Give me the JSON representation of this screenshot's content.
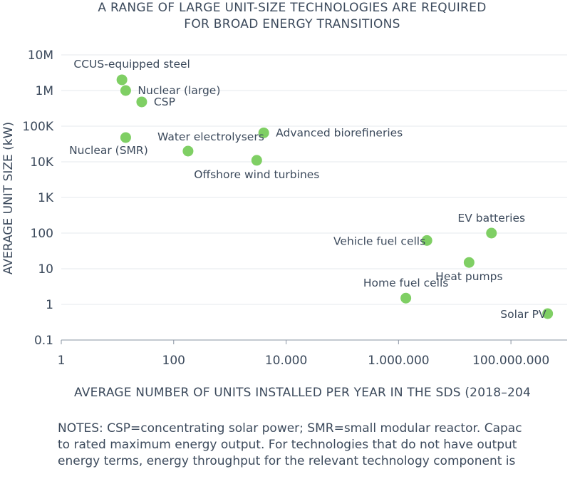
{
  "chart_data": {
    "type": "scatter",
    "title_lines": [
      "A RANGE OF LARGE UNIT-SIZE TECHNOLOGIES ARE REQUIRED",
      "FOR BROAD ENERGY TRANSITIONS"
    ],
    "xlabel": "AVERAGE NUMBER OF UNITS INSTALLED PER YEAR IN THE SDS (2018–204",
    "ylabel": "AVERAGE UNIT SIZE (kW)",
    "x_scale": "log",
    "y_scale": "log",
    "xlim": [
      1,
      1000000000
    ],
    "ylim": [
      0.1,
      10000000
    ],
    "x_ticks": [
      {
        "value": 1,
        "label": "1"
      },
      {
        "value": 100,
        "label": "100"
      },
      {
        "value": 10000,
        "label": "10.000"
      },
      {
        "value": 1000000,
        "label": "1.000.000"
      },
      {
        "value": 100000000,
        "label": "100.000.000"
      }
    ],
    "y_ticks": [
      {
        "value": 10000000,
        "label": "10M"
      },
      {
        "value": 1000000,
        "label": "1M"
      },
      {
        "value": 100000,
        "label": "100K"
      },
      {
        "value": 10000,
        "label": "10K"
      },
      {
        "value": 1000,
        "label": "1K"
      },
      {
        "value": 100,
        "label": "100"
      },
      {
        "value": 10,
        "label": "10"
      },
      {
        "value": 1,
        "label": "1"
      },
      {
        "value": 0.1,
        "label": "0.1"
      }
    ],
    "grid": "horizontal",
    "marker_color": "#7fcf64",
    "points": [
      {
        "label": "CCUS-equipped steel",
        "x": 12,
        "y": 2000000,
        "label_pos": "above-left"
      },
      {
        "label": "Nuclear (large)",
        "x": 14,
        "y": 1000000,
        "label_pos": "right"
      },
      {
        "label": "CSP",
        "x": 27,
        "y": 480000,
        "label_pos": "right"
      },
      {
        "label": "Nuclear (SMR)",
        "x": 14,
        "y": 48000,
        "label_pos": "below-left"
      },
      {
        "label": "Water electrolysers",
        "x": 180,
        "y": 20000,
        "label_pos": "above-right"
      },
      {
        "label": "Advanced biorefineries",
        "x": 4000,
        "y": 65000,
        "label_pos": "right"
      },
      {
        "label": "Offshore wind turbines",
        "x": 3000,
        "y": 11000,
        "label_pos": "below"
      },
      {
        "label": "EV batteries",
        "x": 45000000,
        "y": 100,
        "label_pos": "above"
      },
      {
        "label": "Vehicle fuel cells",
        "x": 3200000,
        "y": 62,
        "label_pos": "left"
      },
      {
        "label": "Heat pumps",
        "x": 18000000,
        "y": 15,
        "label_pos": "below"
      },
      {
        "label": "Home fuel cells",
        "x": 1350000,
        "y": 1.5,
        "label_pos": "above"
      },
      {
        "label": "Solar PV",
        "x": 450000000,
        "y": 0.55,
        "label_pos": "left"
      }
    ]
  },
  "notes_lines": [
    "NOTES: CSP=concentrating solar power; SMR=small modular reactor. Capac",
    "to rated maximum energy output. For technologies that do not have output",
    "energy terms, energy throughput for the relevant technology component is"
  ]
}
